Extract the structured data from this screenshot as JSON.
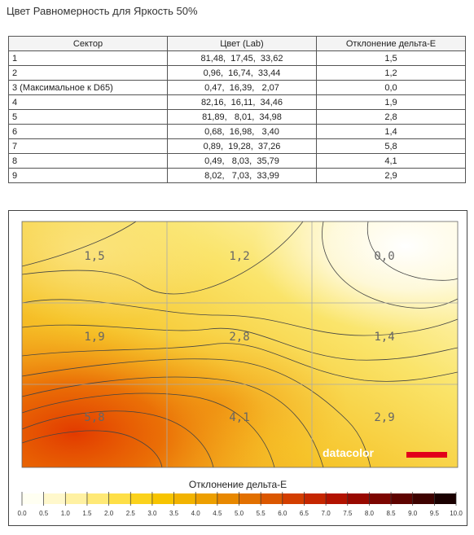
{
  "title": "Цвет Равномерность для Яркость 50%",
  "table": {
    "header": [
      "Сектор",
      "Цвет (Lab)",
      "Отклонение дельта-E"
    ],
    "rows": [
      [
        "1",
        "81,48,  17,45,  33,62",
        "1,5"
      ],
      [
        "2",
        "0,96,  16,74,  33,44",
        "1,2"
      ],
      [
        "3 (Максимальное к D65)",
        "0,47,  16,39,   2,07",
        "0,0"
      ],
      [
        "4",
        "82,16,  16,11,  34,46",
        "1,9"
      ],
      [
        "5",
        "81,89,   8,01,  34,98",
        "2,8"
      ],
      [
        "6",
        "0,68,  16,98,   3,40",
        "1,4"
      ],
      [
        "7",
        "0,89,  19,28,  37,26",
        "5,8"
      ],
      [
        "8",
        "0,49,   8,03,  35,79",
        "4,1"
      ],
      [
        "9",
        "8,02,   7,03,  33,99",
        "2,9"
      ]
    ]
  },
  "map": {
    "labels": [
      "1,5",
      "1,2",
      "0,0",
      "1,9",
      "2,8",
      "1,4",
      "5,8",
      "4,1",
      "2,9"
    ],
    "logo": "datacolor",
    "scale_title": "Отклонение дельта-E",
    "scale_ticks": [
      "0.0",
      "0.5",
      "1.0",
      "1.5",
      "2.0",
      "2.5",
      "3.0",
      "3.5",
      "4.0",
      "4.5",
      "5.0",
      "5.5",
      "6.0",
      "6.5",
      "7.0",
      "7.5",
      "8.0",
      "8.5",
      "9.0",
      "9.5",
      "10.0"
    ],
    "scale_colors": [
      "#fffff2",
      "#fff8cc",
      "#fff1a2",
      "#ffe976",
      "#fedf47",
      "#fbd21c",
      "#f7c400",
      "#f2b300",
      "#ed9f00",
      "#e88800",
      "#e27000",
      "#db5700",
      "#d33e00",
      "#c52600",
      "#b21200",
      "#980800",
      "#7c0500",
      "#5e0300",
      "#3e0200",
      "#1a0000"
    ]
  }
}
